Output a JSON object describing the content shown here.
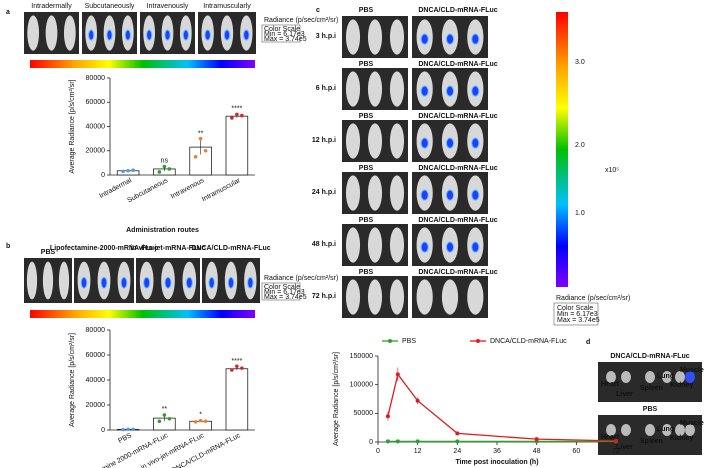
{
  "chart_data": [
    {
      "type": "bar",
      "categories": [
        "Intradermal",
        "Subcutaneous",
        "Intravenous",
        "Intramuscular"
      ],
      "values": [
        3500,
        5000,
        23000,
        48500
      ],
      "errors": [
        500,
        1800,
        6000,
        1200
      ],
      "points": [
        [
          3000,
          3500,
          4000
        ],
        [
          2500,
          7000,
          5000
        ],
        [
          15000,
          30000,
          20000
        ],
        [
          47000,
          50000,
          49000
        ]
      ],
      "colors": [
        "#5b9bd5",
        "#2ca02c",
        "#ed7d31",
        "#d62728"
      ],
      "annotations": [
        null,
        "ns",
        "**",
        "****"
      ],
      "ylim": [
        0,
        80000
      ],
      "yticks": [
        0,
        20000,
        40000,
        60000,
        80000
      ],
      "ylabel": "Average Radiance [p/s/cm²/sr]",
      "xlabel": "Administration routes"
    },
    {
      "type": "bar",
      "categories": [
        "PBS",
        "Lipofectamine 2000-mRNA-FLuc",
        "in vivo-jet-mRNA-FLuc",
        "DNCA/CLD-mRNA-FLuc"
      ],
      "values": [
        500,
        9500,
        7000,
        49000
      ],
      "errors": [
        200,
        2500,
        600,
        1300
      ],
      "points": [
        [
          300,
          600,
          500
        ],
        [
          7000,
          12000,
          9000
        ],
        [
          6500,
          7500,
          7000
        ],
        [
          48000,
          51000,
          49500
        ]
      ],
      "colors": [
        "#5b9bd5",
        "#2ca02c",
        "#ed7d31",
        "#d62728"
      ],
      "annotations": [
        null,
        "**",
        "*",
        "****"
      ],
      "ylim": [
        0,
        80000
      ],
      "yticks": [
        0,
        20000,
        40000,
        60000,
        80000
      ],
      "ylabel": "Average Radiance [p/s/cm²/sr]"
    },
    {
      "type": "line",
      "x": [
        3,
        6,
        12,
        24,
        48,
        72
      ],
      "series": [
        {
          "name": "PBS",
          "color": "#2ca02c",
          "values": [
            1000,
            1000,
            1000,
            1000,
            1000,
            1000
          ],
          "errors": [
            300,
            300,
            300,
            300,
            300,
            300
          ]
        },
        {
          "name": "DNCA/CLD-mRNA-FLuc",
          "color": "#e31a1c",
          "values": [
            45000,
            118000,
            72000,
            15000,
            5000,
            2000
          ],
          "errors": [
            8000,
            12000,
            6000,
            1500,
            800,
            500
          ]
        }
      ],
      "xlim": [
        0,
        72
      ],
      "xticks": [
        0,
        12,
        24,
        36,
        48,
        60,
        72
      ],
      "ylim": [
        0,
        150000
      ],
      "yticks": [
        0,
        50000,
        100000,
        150000
      ],
      "xlabel": "Time post inoculation (h)",
      "ylabel": "Average Radiance [p/s/cm²/sr]"
    }
  ],
  "figure": {
    "panel_labels": [
      "a",
      "b",
      "c",
      "d"
    ],
    "a_images": [
      "Intradermally",
      "Subcutaneously",
      "Intravenously",
      "Intramuscularly"
    ],
    "b_images": [
      "PBS",
      "Lipofectamine-2000-mRNA-FLuc",
      "in vivo jet-mRNA-FLuc",
      "DNCA/CLD-mRNA-FLuc"
    ],
    "radiance": "Radiance (p/sec/cm²/sr)",
    "color_scale": [
      "Color Scale",
      "Min = 6.17e3",
      "Max = 3.74e5"
    ],
    "c_columns": [
      "PBS",
      "DNCA/CLD-mRNA-FLuc"
    ],
    "c_rows": [
      "3 h.p.i",
      "6 h.p.i",
      "12 h.p.i",
      "24 h.p.i",
      "48 h.p.i",
      "72 h.p.i"
    ],
    "c_colorbar": [
      "3.0",
      "2.0",
      "1.0",
      "x10⁵"
    ],
    "d_groups": [
      "DNCA/CLD-mRNA-FLuc",
      "PBS"
    ],
    "d_organs": [
      "Heart",
      "Liver",
      "Spleen",
      "Lung",
      "Kidney",
      "Muscle"
    ]
  }
}
